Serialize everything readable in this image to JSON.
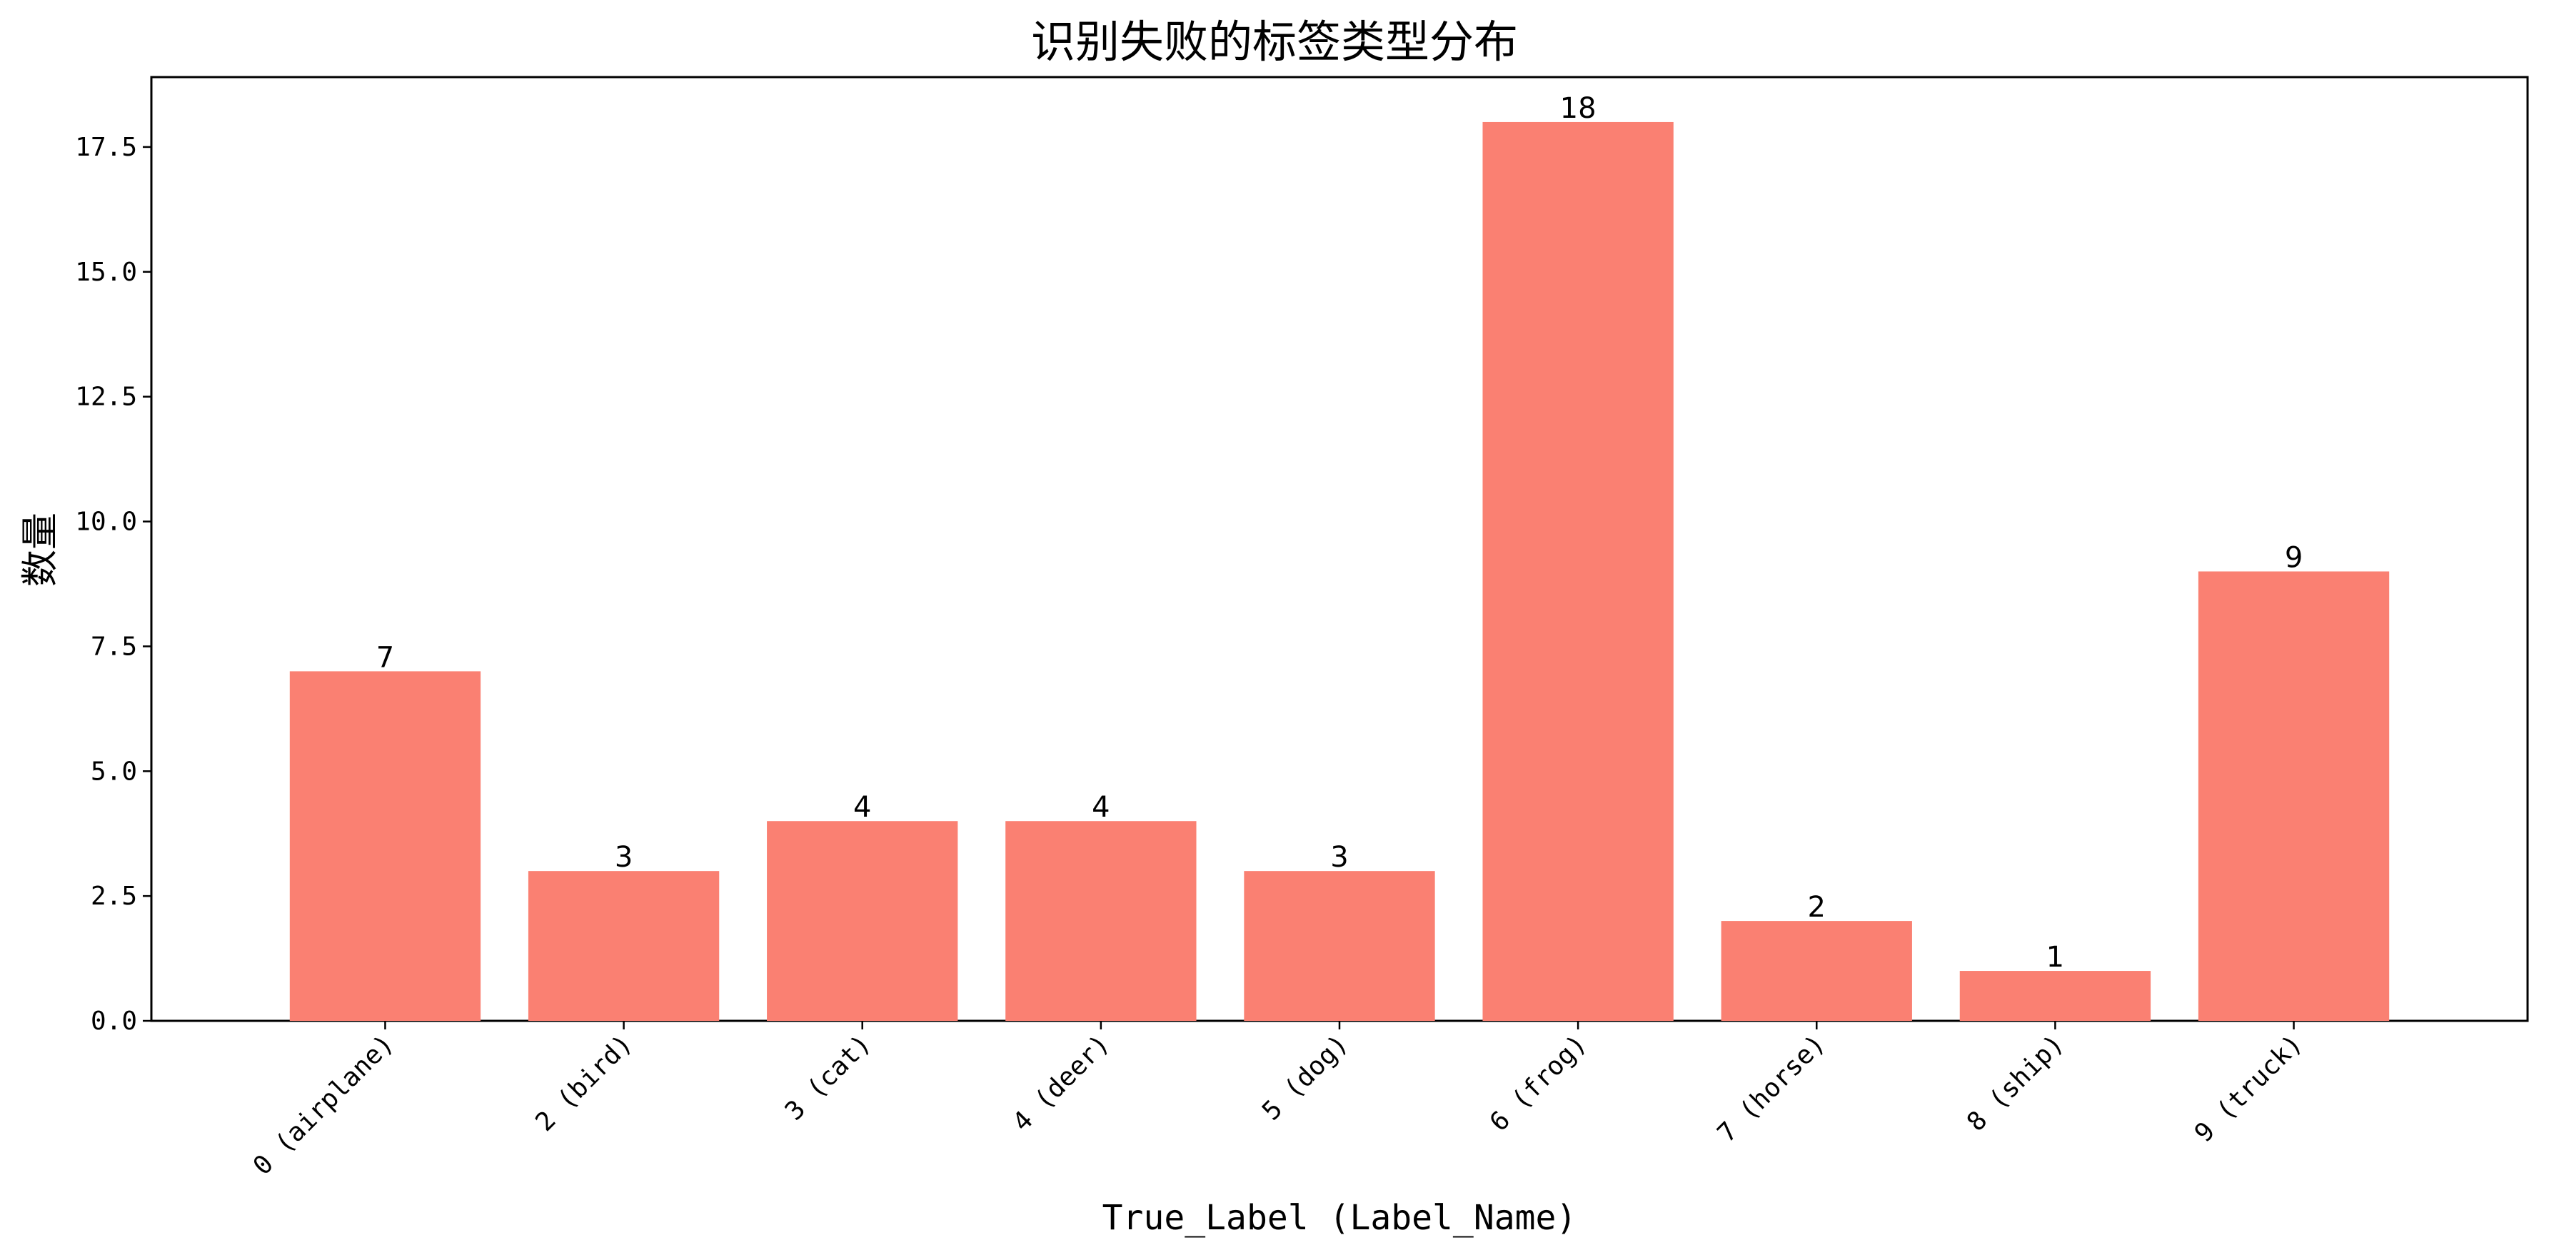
{
  "chart_data": {
    "type": "bar",
    "title": "识别失败的标签类型分布",
    "xlabel": "True_Label (Label_Name)",
    "ylabel": "数量",
    "categories": [
      "0 (airplane)",
      "2 (bird)",
      "3 (cat)",
      "4 (deer)",
      "5 (dog)",
      "6 (frog)",
      "7 (horse)",
      "8 (ship)",
      "9 (truck)"
    ],
    "values": [
      7,
      3,
      4,
      4,
      3,
      18,
      2,
      1,
      9
    ],
    "value_labels": [
      "7",
      "3",
      "4",
      "4",
      "3",
      "18",
      "2",
      "1",
      "9"
    ],
    "yticks": [
      0,
      2.5,
      5,
      7.5,
      10,
      12.5,
      15,
      17.5
    ],
    "ytick_labels": [
      "0.0",
      "2.5",
      "5.0",
      "7.5",
      "10.0",
      "12.5",
      "15.0",
      "17.5"
    ],
    "ylim": [
      0,
      18.9
    ],
    "grid": false,
    "bar_color": "#fa8072",
    "axis_color": "#000000"
  }
}
